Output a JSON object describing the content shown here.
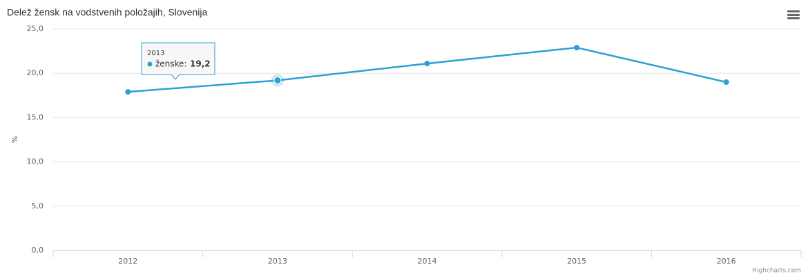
{
  "chart_data": {
    "type": "line",
    "title": "Delež žensk na vodstvenih položajih, Slovenija",
    "y_label": "%",
    "categories": [
      "2012",
      "2013",
      "2014",
      "2015",
      "2016"
    ],
    "series": [
      {
        "name": "ženske",
        "color": "#2ba0d4",
        "values": [
          17.9,
          19.2,
          21.1,
          22.9,
          19.0
        ]
      }
    ],
    "ylim": [
      0,
      25
    ],
    "yticks": [
      {
        "value": 0,
        "label": "0,0"
      },
      {
        "value": 5,
        "label": "5,0"
      },
      {
        "value": 10,
        "label": "10,0"
      },
      {
        "value": 15,
        "label": "15,0"
      },
      {
        "value": 20,
        "label": "20,0"
      },
      {
        "value": 25,
        "label": "25,0"
      }
    ],
    "grid": true,
    "tooltip": {
      "header": "2013",
      "text": "ženske:",
      "value_label": "19,2"
    },
    "credits": "Highcharts.com"
  }
}
